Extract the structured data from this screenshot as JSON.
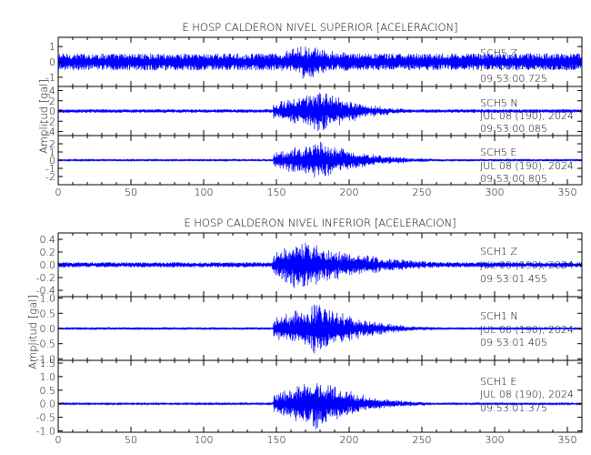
{
  "xlim": [
    0,
    360
  ],
  "x_ticks": [
    0,
    50,
    100,
    150,
    200,
    250,
    300,
    350
  ],
  "trace_color": "#0000ff",
  "chart_data": [
    {
      "type": "line",
      "title": "E HOSP CALDERON NIVEL SUPERIOR [ACELERACION]",
      "ylabel": "Amplitud [gal]",
      "xlabel": "",
      "grid": false,
      "channels": [
        {
          "station": "SCH5   Z",
          "date": "JUL 08 (190), 2024",
          "time": "09:53:00.725",
          "ylim": [
            -1.6,
            1.6
          ],
          "ticks": [
            -1,
            0,
            1
          ],
          "noise": 0.55,
          "peak": 1.25,
          "onset": 148,
          "peak_t": 168,
          "decay": 45
        },
        {
          "station": "SCH5   N",
          "date": "JUL 08 (190), 2024",
          "time": "09:53:00.085",
          "ylim": [
            -4.8,
            4.8
          ],
          "ticks": [
            -4,
            -2,
            0,
            2,
            4
          ],
          "noise": 0.35,
          "peak": 4.6,
          "onset": 148,
          "peak_t": 183,
          "decay": 25
        },
        {
          "station": "SCH5   E",
          "date": "JUL 08 (190), 2024",
          "time": "09:53:00.805",
          "ylim": [
            -3.0,
            3.0
          ],
          "ticks": [
            -2,
            -1,
            0,
            1,
            2
          ],
          "noise": 0.12,
          "peak": 2.6,
          "onset": 148,
          "peak_t": 180,
          "decay": 30
        }
      ]
    },
    {
      "type": "line",
      "title": "E HOSP CALDERON NIVEL INFERIOR [ACELERACION]",
      "ylabel": "Amplitud [gal]",
      "xlabel": "",
      "grid": false,
      "channels": [
        {
          "station": "SCH1   Z",
          "date": "JUL 08 (190), 2024",
          "time": "09:53:01.455",
          "ylim": [
            -0.5,
            0.5
          ],
          "ticks": [
            -0.4,
            -0.2,
            0.0,
            0.2,
            0.4
          ],
          "noise": 0.04,
          "peak": 0.45,
          "onset": 147,
          "peak_t": 165,
          "decay": 45
        },
        {
          "station": "SCH1   N",
          "date": "JUL 08 (190), 2024",
          "time": "09:53:01.405",
          "ylim": [
            -1.05,
            1.05
          ],
          "ticks": [
            -1.0,
            -0.5,
            0.0,
            0.5,
            1.0
          ],
          "noise": 0.04,
          "peak": 0.95,
          "onset": 148,
          "peak_t": 180,
          "decay": 28
        },
        {
          "station": "SCH1   E",
          "date": "JUL 08 (190), 2024",
          "time": "09:53:01.375",
          "ylim": [
            -1.05,
            1.6
          ],
          "ticks": [
            -1.0,
            -0.5,
            0.0,
            0.5,
            1.0,
            1.5
          ],
          "noise": 0.03,
          "peak": 1.0,
          "onset": 148,
          "peak_t": 180,
          "decay": 28
        }
      ]
    }
  ]
}
